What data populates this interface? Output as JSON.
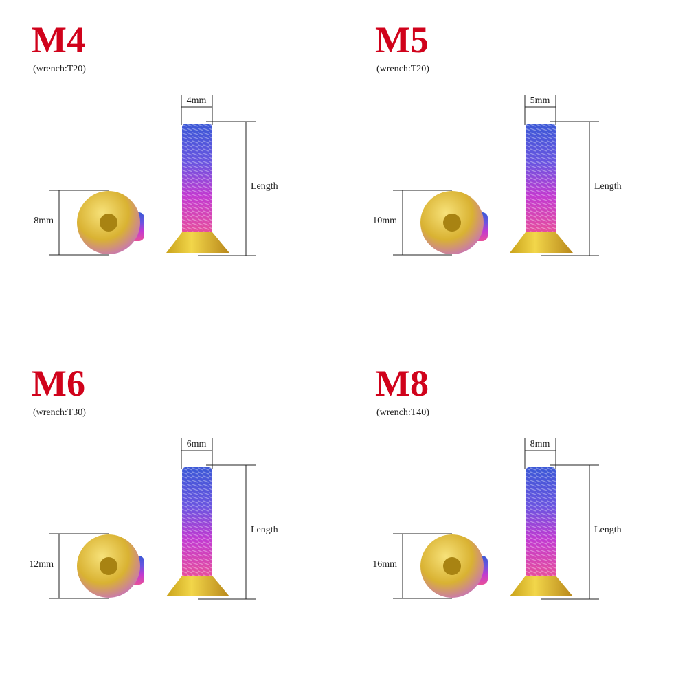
{
  "panels": [
    {
      "title": "M4",
      "wrench": "(wrench:T20)",
      "thread": "4mm",
      "head": "8mm",
      "length": "Length"
    },
    {
      "title": "M5",
      "wrench": "(wrench:T20)",
      "thread": "5mm",
      "head": "10mm",
      "length": "Length"
    },
    {
      "title": "M6",
      "wrench": "(wrench:T30)",
      "thread": "6mm",
      "head": "12mm",
      "length": "Length"
    },
    {
      "title": "M8",
      "wrench": "(wrench:T40)",
      "thread": "8mm",
      "head": "16mm",
      "length": "Length"
    }
  ]
}
